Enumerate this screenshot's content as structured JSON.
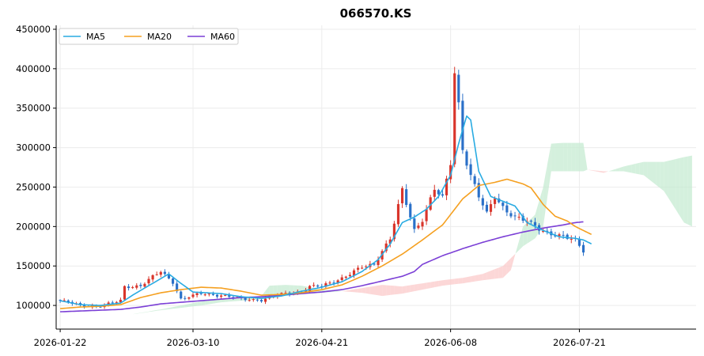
{
  "chart_data": {
    "type": "candlestick",
    "title": "066570.KS",
    "xlabel": "",
    "ylabel": "",
    "ylim": [
      70000,
      455000
    ],
    "x_ticks": [
      "2026-01-22",
      "2026-03-10",
      "2026-04-21",
      "2026-06-08",
      "2026-07-21"
    ],
    "x_tick_index": [
      0,
      33,
      65,
      97,
      129
    ],
    "y_ticks": [
      "100000",
      "150000",
      "200000",
      "250000",
      "300000",
      "350000",
      "400000",
      "450000"
    ],
    "y_tick_values": [
      100000,
      150000,
      200000,
      250000,
      300000,
      350000,
      400000,
      450000
    ],
    "x_range_index": [
      -1,
      158
    ],
    "grid": true,
    "legend_position": "top-left",
    "colors": {
      "up": "#d9352b",
      "down": "#2a70c8",
      "ma5": "#29abe2",
      "ma20": "#f5a020",
      "ma60": "#7b3fd6",
      "cloud_bull": "#c5ebd1",
      "cloud_bear": "#fbcaca"
    },
    "legend": [
      {
        "label": "MA5",
        "color": "#29abe2"
      },
      {
        "label": "MA20",
        "color": "#f5a020"
      },
      {
        "label": "MA60",
        "color": "#7b3fd6"
      }
    ],
    "close_anchors": [
      [
        0,
        106000
      ],
      [
        5,
        100000
      ],
      [
        10,
        99000
      ],
      [
        15,
        106000
      ],
      [
        16,
        124000
      ],
      [
        20,
        125000
      ],
      [
        25,
        143000
      ],
      [
        28,
        130000
      ],
      [
        30,
        108000
      ],
      [
        35,
        115000
      ],
      [
        40,
        113000
      ],
      [
        45,
        108000
      ],
      [
        50,
        107000
      ],
      [
        55,
        114000
      ],
      [
        60,
        118000
      ],
      [
        62,
        124000
      ],
      [
        65,
        124000
      ],
      [
        70,
        135000
      ],
      [
        75,
        148000
      ],
      [
        78,
        152000
      ],
      [
        80,
        170000
      ],
      [
        82,
        185000
      ],
      [
        85,
        245000
      ],
      [
        88,
        195000
      ],
      [
        90,
        210000
      ],
      [
        93,
        248000
      ],
      [
        95,
        235000
      ],
      [
        97,
        280000
      ],
      [
        98,
        395000
      ],
      [
        99,
        355000
      ],
      [
        100,
        300000
      ],
      [
        102,
        265000
      ],
      [
        104,
        238000
      ],
      [
        106,
        215000
      ],
      [
        108,
        238000
      ],
      [
        110,
        225000
      ],
      [
        113,
        212000
      ],
      [
        115,
        208000
      ],
      [
        117,
        203000
      ],
      [
        120,
        195000
      ],
      [
        124,
        188000
      ],
      [
        128,
        182000
      ],
      [
        130,
        170000
      ]
    ],
    "ma5_anchors": [
      [
        0,
        106000
      ],
      [
        5,
        101000
      ],
      [
        10,
        100000
      ],
      [
        15,
        103000
      ],
      [
        18,
        113000
      ],
      [
        22,
        125000
      ],
      [
        26,
        137000
      ],
      [
        27,
        140000
      ],
      [
        30,
        128000
      ],
      [
        33,
        117000
      ],
      [
        40,
        115000
      ],
      [
        45,
        111000
      ],
      [
        50,
        109000
      ],
      [
        55,
        112000
      ],
      [
        60,
        118000
      ],
      [
        65,
        123000
      ],
      [
        70,
        130000
      ],
      [
        75,
        143000
      ],
      [
        79,
        158000
      ],
      [
        82,
        178000
      ],
      [
        85,
        205000
      ],
      [
        88,
        212000
      ],
      [
        91,
        222000
      ],
      [
        94,
        238000
      ],
      [
        97,
        265000
      ],
      [
        99,
        305000
      ],
      [
        101,
        340000
      ],
      [
        102,
        335000
      ],
      [
        104,
        270000
      ],
      [
        107,
        238000
      ],
      [
        110,
        232000
      ],
      [
        113,
        226000
      ],
      [
        116,
        205000
      ],
      [
        120,
        195000
      ],
      [
        124,
        187000
      ],
      [
        128,
        185000
      ],
      [
        130,
        183000
      ],
      [
        132,
        178000
      ]
    ],
    "ma20_anchors": [
      [
        0,
        96000
      ],
      [
        5,
        98000
      ],
      [
        10,
        99000
      ],
      [
        15,
        101000
      ],
      [
        20,
        110000
      ],
      [
        25,
        116000
      ],
      [
        30,
        120000
      ],
      [
        35,
        123000
      ],
      [
        40,
        122000
      ],
      [
        45,
        118000
      ],
      [
        50,
        113000
      ],
      [
        55,
        114000
      ],
      [
        60,
        116000
      ],
      [
        65,
        120000
      ],
      [
        70,
        126000
      ],
      [
        75,
        137000
      ],
      [
        80,
        150000
      ],
      [
        85,
        165000
      ],
      [
        90,
        183000
      ],
      [
        95,
        202000
      ],
      [
        100,
        235000
      ],
      [
        104,
        252000
      ],
      [
        108,
        256000
      ],
      [
        111,
        260000
      ],
      [
        115,
        254000
      ],
      [
        117,
        249000
      ],
      [
        120,
        228000
      ],
      [
        123,
        213000
      ],
      [
        126,
        207000
      ],
      [
        128,
        200000
      ],
      [
        132,
        190000
      ]
    ],
    "ma60_anchors": [
      [
        0,
        92000
      ],
      [
        10,
        94000
      ],
      [
        15,
        95000
      ],
      [
        20,
        98000
      ],
      [
        25,
        102000
      ],
      [
        30,
        104000
      ],
      [
        35,
        106000
      ],
      [
        40,
        108000
      ],
      [
        45,
        110000
      ],
      [
        50,
        111000
      ],
      [
        55,
        113000
      ],
      [
        60,
        115000
      ],
      [
        65,
        117000
      ],
      [
        70,
        120000
      ],
      [
        75,
        125000
      ],
      [
        80,
        131000
      ],
      [
        85,
        137000
      ],
      [
        88,
        143000
      ],
      [
        90,
        152000
      ],
      [
        95,
        163000
      ],
      [
        100,
        172000
      ],
      [
        105,
        180000
      ],
      [
        110,
        187000
      ],
      [
        115,
        193000
      ],
      [
        120,
        198000
      ],
      [
        125,
        202000
      ],
      [
        128,
        205000
      ],
      [
        130,
        206000
      ]
    ],
    "span_a_anchors": [
      [
        17,
        88000
      ],
      [
        25,
        95000
      ],
      [
        30,
        100000
      ],
      [
        35,
        105000
      ],
      [
        40,
        108000
      ],
      [
        45,
        110000
      ],
      [
        50,
        112000
      ],
      [
        52,
        125000
      ],
      [
        56,
        126000
      ],
      [
        60,
        125000
      ],
      [
        65,
        120000
      ],
      [
        70,
        118000
      ],
      [
        75,
        116000
      ],
      [
        80,
        112000
      ],
      [
        85,
        115000
      ],
      [
        90,
        120000
      ],
      [
        95,
        125000
      ],
      [
        100,
        128000
      ],
      [
        105,
        132000
      ],
      [
        110,
        135000
      ],
      [
        112,
        145000
      ],
      [
        115,
        200000
      ],
      [
        118,
        215000
      ],
      [
        120,
        250000
      ],
      [
        122,
        305000
      ],
      [
        125,
        306000
      ],
      [
        130,
        306000
      ],
      [
        131,
        272000
      ],
      [
        135,
        268000
      ],
      [
        140,
        276000
      ],
      [
        145,
        282000
      ],
      [
        150,
        282000
      ],
      [
        155,
        288000
      ],
      [
        157,
        290000
      ]
    ],
    "span_b_anchors": [
      [
        17,
        88000
      ],
      [
        25,
        94000
      ],
      [
        30,
        97000
      ],
      [
        35,
        100000
      ],
      [
        40,
        104000
      ],
      [
        45,
        106000
      ],
      [
        50,
        108000
      ],
      [
        52,
        110000
      ],
      [
        56,
        112000
      ],
      [
        60,
        114000
      ],
      [
        65,
        116000
      ],
      [
        70,
        118000
      ],
      [
        75,
        122000
      ],
      [
        80,
        126000
      ],
      [
        85,
        124000
      ],
      [
        90,
        128000
      ],
      [
        95,
        132000
      ],
      [
        100,
        135000
      ],
      [
        105,
        140000
      ],
      [
        110,
        150000
      ],
      [
        112,
        160000
      ],
      [
        115,
        175000
      ],
      [
        118,
        185000
      ],
      [
        120,
        200000
      ],
      [
        122,
        270000
      ],
      [
        125,
        270000
      ],
      [
        130,
        270000
      ],
      [
        131,
        272000
      ],
      [
        135,
        270000
      ],
      [
        140,
        270000
      ],
      [
        145,
        265000
      ],
      [
        150,
        245000
      ],
      [
        155,
        205000
      ],
      [
        157,
        200000
      ]
    ]
  }
}
